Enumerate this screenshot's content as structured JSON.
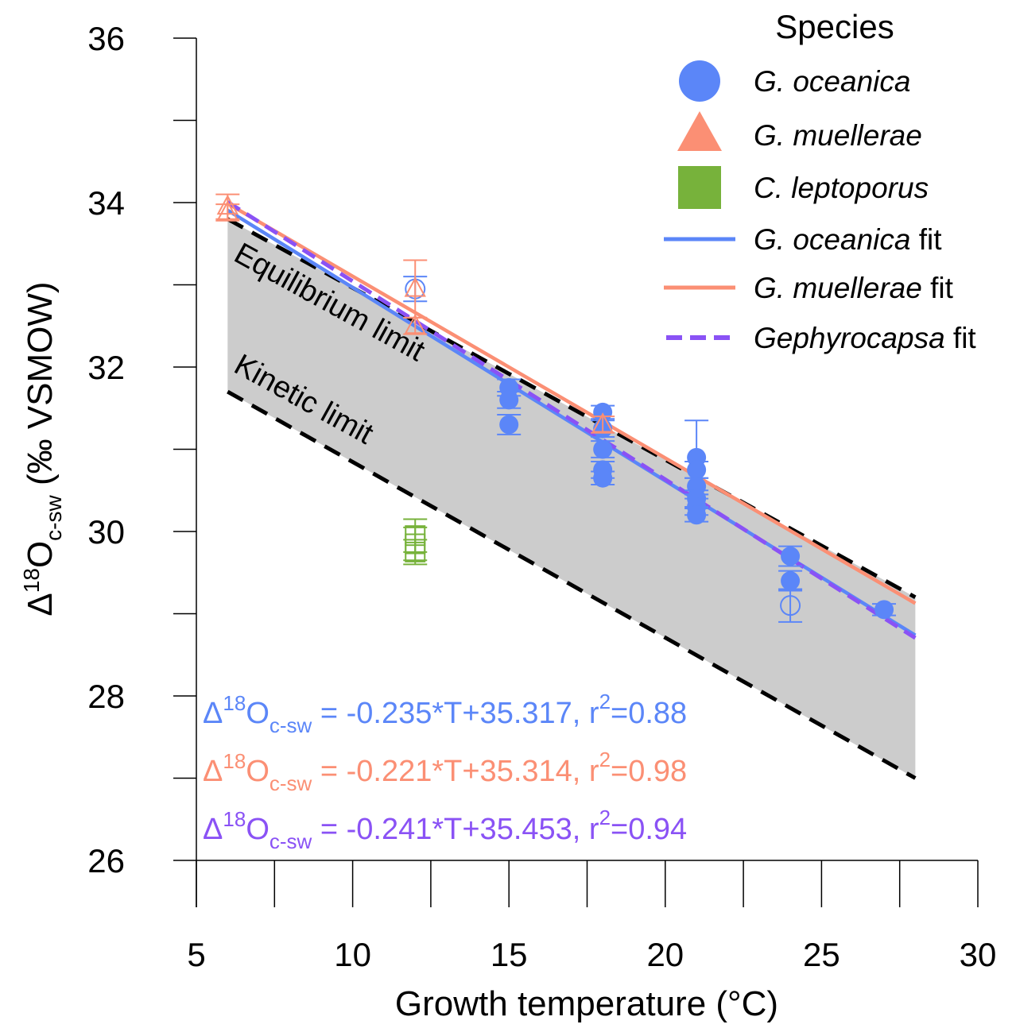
{
  "chart_data": {
    "type": "scatter",
    "xlabel": "Growth temperature (°C)",
    "ylabel": {
      "delta": "Δ",
      "sup": "18",
      "main": "O",
      "sub": "c-sw",
      "rest": " (‰ VSMOW)"
    },
    "xlim": [
      5,
      30
    ],
    "ylim": [
      26,
      36
    ],
    "xticks": [
      5,
      10,
      15,
      20,
      25,
      30
    ],
    "yticks": [
      26,
      28,
      30,
      32,
      34,
      36
    ],
    "colors": {
      "oceanica": "#5b86f8",
      "muellerae": "#fb8f74",
      "leptoporus": "#77b23b",
      "gephyrocapsa": "#8a52f5",
      "shade": "#cccccc"
    },
    "legend": {
      "title": "Species",
      "items": [
        {
          "name": "G. oceanica",
          "suffix": "",
          "marker": "circle",
          "color": "#5b86f8"
        },
        {
          "name": "G. muellerae",
          "suffix": "",
          "marker": "triangle",
          "color": "#fb8f74"
        },
        {
          "name": "C. leptoporus",
          "suffix": "",
          "marker": "square",
          "color": "#77b23b"
        },
        {
          "name": "G. oceanica",
          "suffix": " fit",
          "marker": "line",
          "color": "#5b86f8"
        },
        {
          "name": "G. muellerae",
          "suffix": " fit",
          "marker": "line",
          "color": "#fb8f74"
        },
        {
          "name": "Gephyrocapsa",
          "suffix": " fit",
          "marker": "dash",
          "color": "#8a52f5"
        }
      ]
    },
    "limits": [
      {
        "name": "Equilibrium limit",
        "x": [
          6,
          28
        ],
        "y": [
          33.8,
          29.2
        ]
      },
      {
        "name": "Kinetic limit",
        "x": [
          6,
          28
        ],
        "y": [
          31.7,
          27.0
        ]
      }
    ],
    "fits": [
      {
        "name": "G. oceanica fit",
        "slope": -0.235,
        "intercept": 35.317,
        "r2": 0.88,
        "x": [
          6,
          28
        ],
        "style": "solid",
        "color": "#5b86f8"
      },
      {
        "name": "G. muellerae fit",
        "slope": -0.221,
        "intercept": 35.314,
        "r2": 0.98,
        "x": [
          6,
          28
        ],
        "style": "solid",
        "color": "#fb8f74"
      },
      {
        "name": "Gephyrocapsa fit",
        "slope": -0.241,
        "intercept": 35.453,
        "r2": 0.94,
        "x": [
          6,
          28
        ],
        "style": "dash",
        "color": "#8a52f5"
      }
    ],
    "series": [
      {
        "name": "G. oceanica",
        "marker": "circle",
        "color": "#5b86f8",
        "points": [
          {
            "x": 12,
            "y": 32.95,
            "err": 0.15,
            "filled": false
          },
          {
            "x": 15,
            "y": 31.75,
            "err": 0.1,
            "filled": true
          },
          {
            "x": 15,
            "y": 31.6,
            "err": 0.1,
            "filled": true
          },
          {
            "x": 15,
            "y": 31.3,
            "err": 0.12,
            "filled": true
          },
          {
            "x": 18,
            "y": 31.45,
            "err": 0.08,
            "filled": true
          },
          {
            "x": 18,
            "y": 31.25,
            "err": 0.1,
            "filled": true
          },
          {
            "x": 18,
            "y": 31.0,
            "err": 0.1,
            "filled": true
          },
          {
            "x": 18,
            "y": 30.75,
            "err": 0.1,
            "filled": true
          },
          {
            "x": 18,
            "y": 30.65,
            "err": 0.08,
            "filled": true
          },
          {
            "x": 21,
            "y": 30.9,
            "err": 0.45,
            "filled": true
          },
          {
            "x": 21,
            "y": 30.75,
            "err": 0.1,
            "filled": true
          },
          {
            "x": 21,
            "y": 30.55,
            "err": 0.1,
            "filled": true
          },
          {
            "x": 21,
            "y": 30.4,
            "err": 0.1,
            "filled": true
          },
          {
            "x": 21,
            "y": 30.3,
            "err": 0.1,
            "filled": true
          },
          {
            "x": 21,
            "y": 30.2,
            "err": 0.08,
            "filled": true
          },
          {
            "x": 24,
            "y": 29.7,
            "err": 0.12,
            "filled": true
          },
          {
            "x": 24,
            "y": 29.4,
            "err": 0.12,
            "filled": true
          },
          {
            "x": 24,
            "y": 29.1,
            "err": 0.2,
            "filled": false
          },
          {
            "x": 27,
            "y": 29.05,
            "err": 0.07,
            "filled": true
          }
        ]
      },
      {
        "name": "G. muellerae",
        "marker": "triangle",
        "color": "#fb8f74",
        "points": [
          {
            "x": 6,
            "y": 33.95,
            "err": 0.15,
            "filled": false
          },
          {
            "x": 6,
            "y": 33.88,
            "err": 0.1,
            "filled": false
          },
          {
            "x": 12,
            "y": 32.95,
            "err": 0.35,
            "filled": false
          },
          {
            "x": 12,
            "y": 32.5,
            "err": 0.1,
            "filled": false
          },
          {
            "x": 18,
            "y": 31.3,
            "err": 0.1,
            "filled": false
          }
        ]
      },
      {
        "name": "C. leptoporus",
        "marker": "square",
        "color": "#77b23b",
        "points": [
          {
            "x": 12,
            "y": 29.95,
            "err": 0.2,
            "filled": false
          },
          {
            "x": 12,
            "y": 29.85,
            "err": 0.2,
            "filled": false
          },
          {
            "x": 12,
            "y": 29.75,
            "err": 0.15,
            "filled": false
          }
        ]
      }
    ],
    "equations": [
      {
        "delta": "Δ",
        "sup": "18",
        "main": "O",
        "sub": "c-sw",
        "lhs": " = -0.235*T+35.317, r",
        "r2sup": "2",
        "rhs": "=0.88",
        "color": "#5b86f8"
      },
      {
        "delta": "Δ",
        "sup": "18",
        "main": "O",
        "sub": "c-sw",
        "lhs": " = -0.221*T+35.314, r",
        "r2sup": "2",
        "rhs": "=0.98",
        "color": "#fb8f74"
      },
      {
        "delta": "Δ",
        "sup": "18",
        "main": "O",
        "sub": "c-sw",
        "lhs": " = -0.241*T+35.453, r",
        "r2sup": "2",
        "rhs": "=0.94",
        "color": "#8a52f5"
      }
    ]
  }
}
